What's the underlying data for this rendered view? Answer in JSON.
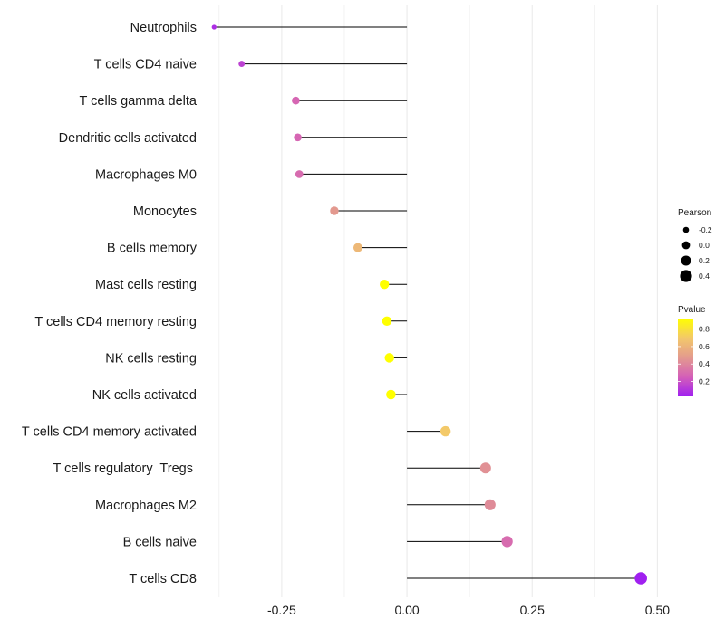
{
  "chart_data": {
    "type": "lollipop",
    "title": "",
    "xlabel": "",
    "ylabel": "",
    "xlim": [
      -0.4,
      0.53
    ],
    "xticks": [
      -0.25,
      0.0,
      0.25,
      0.5
    ],
    "xtick_labels": [
      "-0.25",
      "0.00",
      "0.25",
      "0.50"
    ],
    "grid": true,
    "categories": [
      "Neutrophils",
      "T cells CD4 naive",
      "T cells gamma delta",
      "Dendritic cells activated",
      "Macrophages M0",
      "Monocytes",
      "B cells memory",
      "Mast cells resting",
      "T cells CD4 memory resting",
      "NK cells resting",
      "NK cells activated",
      "T cells CD4 memory activated",
      "T cells regulatory  Tregs ",
      "Macrophages M2",
      "B cells naive",
      "T cells CD8"
    ],
    "pearson": [
      -0.385,
      -0.33,
      -0.222,
      -0.218,
      -0.215,
      -0.145,
      -0.098,
      -0.045,
      -0.04,
      -0.035,
      -0.032,
      0.077,
      0.157,
      0.166,
      0.2,
      0.467
    ],
    "pvalue": [
      0.08,
      0.15,
      0.28,
      0.28,
      0.3,
      0.47,
      0.62,
      0.92,
      0.92,
      0.92,
      0.92,
      0.7,
      0.44,
      0.42,
      0.3,
      0.03
    ],
    "legend": {
      "size": {
        "title": "Pearson",
        "values": [
          -0.2,
          0.0,
          0.2,
          0.4
        ],
        "labels": [
          "-0.2",
          "0.0",
          "0.2",
          "0.4"
        ]
      },
      "color": {
        "title": "Pvalue",
        "range": [
          0.03,
          0.92
        ],
        "ticks": [
          0.2,
          0.4,
          0.6,
          0.8
        ],
        "tick_labels": [
          "0.2",
          "0.4",
          "0.6",
          "0.8"
        ],
        "colors": [
          "#a020f0",
          "#d45fb8",
          "#e39a8e",
          "#f3c86a",
          "#ffff00"
        ],
        "position": "right"
      }
    }
  },
  "colors": {
    "background": "#ffffff",
    "grid": "#ebebeb",
    "segment": "#000000"
  }
}
